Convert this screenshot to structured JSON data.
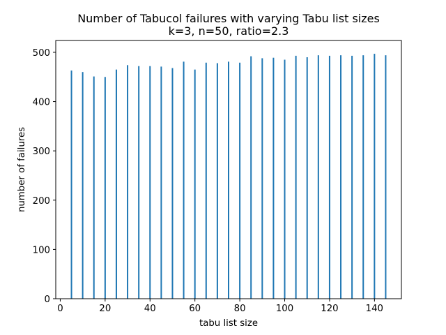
{
  "chart_data": {
    "type": "bar",
    "title": "Number of Tabucol failures with varying Tabu list sizes",
    "subtitle": "k=3, n=50, ratio=2.3",
    "xlabel": "tabu list size",
    "ylabel": "number of failures",
    "xlim": [
      -2.0,
      152.0
    ],
    "ylim": [
      0,
      524
    ],
    "xticks": [
      0,
      20,
      40,
      60,
      80,
      100,
      120,
      140
    ],
    "yticks": [
      0,
      100,
      200,
      300,
      400,
      500
    ],
    "grid": false,
    "bar_color": "#1f77b4",
    "x": [
      5,
      10,
      15,
      20,
      25,
      30,
      35,
      40,
      45,
      50,
      55,
      60,
      65,
      70,
      75,
      80,
      85,
      90,
      95,
      100,
      105,
      110,
      115,
      120,
      125,
      130,
      135,
      140,
      145
    ],
    "values": [
      463,
      460,
      451,
      450,
      465,
      474,
      472,
      472,
      471,
      468,
      481,
      465,
      479,
      478,
      481,
      479,
      492,
      488,
      489,
      485,
      493,
      490,
      494,
      493,
      494,
      493,
      494,
      497,
      494
    ]
  }
}
